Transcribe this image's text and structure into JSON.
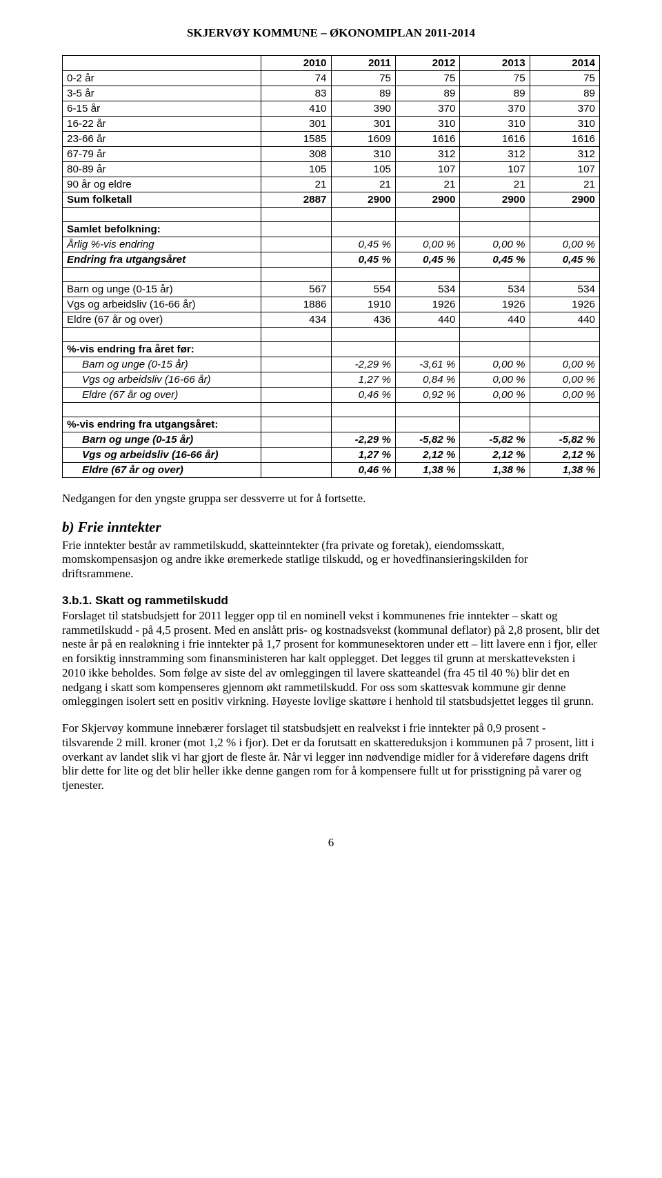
{
  "doc_title": "SKJERVØY KOMMUNE – ØKONOMIPLAN  2011-2014",
  "table": {
    "col_widths_pct": [
      37,
      13,
      12,
      12,
      13,
      13
    ],
    "headers": [
      "",
      "2010",
      "2011",
      "2012",
      "2013",
      "2014"
    ],
    "sections": [
      {
        "rows": [
          {
            "label": "0-2 år",
            "vals": [
              "74",
              "75",
              "75",
              "75",
              "75"
            ]
          },
          {
            "label": "3-5 år",
            "vals": [
              "83",
              "89",
              "89",
              "89",
              "89"
            ]
          },
          {
            "label": "6-15 år",
            "vals": [
              "410",
              "390",
              "370",
              "370",
              "370"
            ]
          },
          {
            "label": "16-22 år",
            "vals": [
              "301",
              "301",
              "310",
              "310",
              "310"
            ]
          },
          {
            "label": "23-66 år",
            "vals": [
              "1585",
              "1609",
              "1616",
              "1616",
              "1616"
            ]
          },
          {
            "label": "67-79 år",
            "vals": [
              "308",
              "310",
              "312",
              "312",
              "312"
            ]
          },
          {
            "label": "80-89 år",
            "vals": [
              "105",
              "105",
              "107",
              "107",
              "107"
            ]
          },
          {
            "label": "90 år og eldre",
            "vals": [
              "21",
              "21",
              "21",
              "21",
              "21"
            ]
          },
          {
            "label": "Sum folketall",
            "bold": true,
            "vals": [
              "2887",
              "2900",
              "2900",
              "2900",
              "2900"
            ]
          }
        ]
      },
      {
        "rows": [
          {
            "label": "Samlet befolkning:",
            "bold": true,
            "vals": [
              "",
              "",
              "",
              "",
              ""
            ]
          },
          {
            "label": "Årlig %-vis endring",
            "italic": true,
            "vals": [
              "",
              "0,45 %",
              "0,00 %",
              "0,00 %",
              "0,00 %"
            ]
          },
          {
            "label": "Endring fra utgangsåret",
            "bold": true,
            "italic": true,
            "vals": [
              "",
              "0,45 %",
              "0,45 %",
              "0,45 %",
              "0,45 %"
            ]
          }
        ]
      },
      {
        "rows": [
          {
            "label": "Barn og unge (0-15 år)",
            "vals": [
              "567",
              "554",
              "534",
              "534",
              "534"
            ]
          },
          {
            "label": "Vgs og arbeidsliv (16-66 år)",
            "vals": [
              "1886",
              "1910",
              "1926",
              "1926",
              "1926"
            ]
          },
          {
            "label": "Eldre (67 år og over)",
            "vals": [
              "434",
              "436",
              "440",
              "440",
              "440"
            ]
          }
        ]
      },
      {
        "rows": [
          {
            "label": "%-vis endring fra året før:",
            "bold": true,
            "vals": [
              "",
              "",
              "",
              "",
              ""
            ]
          },
          {
            "label": "Barn og unge (0-15 år)",
            "indent": true,
            "italic": true,
            "vals": [
              "",
              "-2,29 %",
              "-3,61 %",
              "0,00 %",
              "0,00 %"
            ]
          },
          {
            "label": "Vgs og arbeidsliv (16-66 år)",
            "indent": true,
            "italic": true,
            "vals": [
              "",
              "1,27 %",
              "0,84 %",
              "0,00 %",
              "0,00 %"
            ]
          },
          {
            "label": "Eldre (67 år og over)",
            "indent": true,
            "italic": true,
            "vals": [
              "",
              "0,46 %",
              "0,92 %",
              "0,00 %",
              "0,00 %"
            ]
          }
        ]
      },
      {
        "rows": [
          {
            "label": "%-vis endring fra utgangsåret:",
            "bold": true,
            "vals": [
              "",
              "",
              "",
              "",
              ""
            ]
          },
          {
            "label": "Barn og unge (0-15 år)",
            "indent": true,
            "bold": true,
            "italic": true,
            "vals": [
              "",
              "-2,29 %",
              "-5,82 %",
              "-5,82 %",
              "-5,82 %"
            ]
          },
          {
            "label": "Vgs og arbeidsliv (16-66 år)",
            "indent": true,
            "bold": true,
            "italic": true,
            "vals": [
              "",
              "1,27 %",
              "2,12 %",
              "2,12 %",
              "2,12 %"
            ]
          },
          {
            "label": "Eldre (67 år og over)",
            "indent": true,
            "bold": true,
            "italic": true,
            "vals": [
              "",
              "0,46 %",
              "1,38 %",
              "1,38 %",
              "1,38 %"
            ]
          }
        ]
      }
    ]
  },
  "para1": "Nedgangen for den yngste gruppa ser dessverre ut for å fortsette.",
  "h2": "b) Frie inntekter",
  "para2": "Frie inntekter består av rammetilskudd, skatteinntekter (fra private og foretak), eiendomsskatt, momskompensasjon og andre ikke øremerkede statlige tilskudd, og er hovedfinansieringskilden for driftsrammene.",
  "h3": "3.b.1. Skatt og rammetilskudd",
  "para3": "Forslaget til statsbudsjett for 2011 legger opp til en nominell vekst i kommunenes frie inntekter – skatt og rammetilskudd -  på 4,5 prosent. Med en anslått pris- og kostnadsvekst (kommunal deflator) på 2,8 prosent, blir det neste år på en realøkning i frie inntekter på 1,7 prosent for kommunesektoren under ett – litt lavere enn i fjor, eller en forsiktig innstramming som finansministeren har kalt opplegget. Det legges til grunn at merskatteveksten i 2010 ikke beholdes. Som følge av siste del av omleggingen til lavere skatteandel (fra 45 til 40 %) blir det en nedgang i skatt som kompenseres gjennom økt rammetilskudd. For oss som skattesvak kommune gir denne omleggingen isolert sett en positiv virkning. Høyeste lovlige skattøre i henhold til statsbudsjettet legges til grunn.",
  "para4": "For Skjervøy kommune innebærer forslaget til statsbudsjett en realvekst i frie inntekter på 0,9 prosent - tilsvarende 2 mill. kroner (mot 1,2 % i fjor). Det er da forutsatt en skattereduksjon i kommunen på 7 prosent, litt i overkant av landet slik vi har gjort de fleste år. Når vi legger inn nødvendige midler for å videreføre dagens drift blir dette for lite og det blir heller ikke denne gangen rom for å kompensere fullt ut for prisstigning på varer og tjenester.",
  "page_num": "6"
}
